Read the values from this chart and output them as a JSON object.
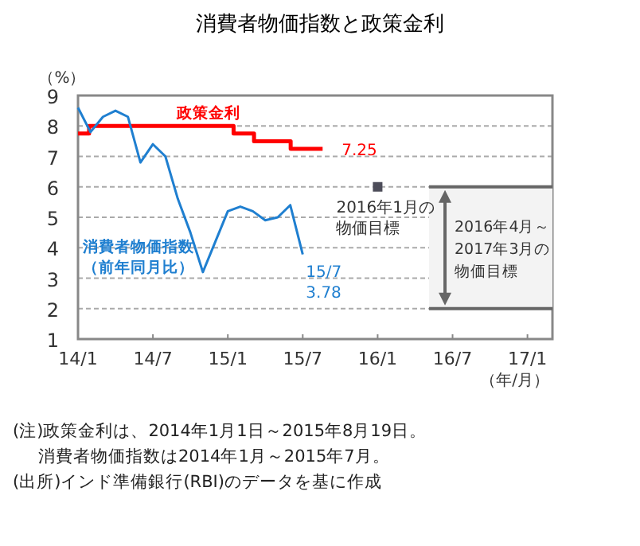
{
  "chart_data": {
    "type": "line",
    "title": "消費者物価指数と政策金利",
    "ylabel": "（%）",
    "xlabel": "（年/月）",
    "xlim": [
      "2014-01",
      "2017-03"
    ],
    "ylim": [
      1,
      9
    ],
    "xticks": [
      {
        "value": "2014-01",
        "label": "14/1"
      },
      {
        "value": "2014-07",
        "label": "14/7"
      },
      {
        "value": "2015-01",
        "label": "15/1"
      },
      {
        "value": "2015-07",
        "label": "15/7"
      },
      {
        "value": "2016-01",
        "label": "16/1"
      },
      {
        "value": "2016-07",
        "label": "16/7"
      },
      {
        "value": "2017-01",
        "label": "17/1"
      }
    ],
    "yticks": [
      1,
      2,
      3,
      4,
      5,
      6,
      7,
      8,
      9
    ],
    "grid": "y",
    "series": [
      {
        "name": "政策金利",
        "type": "step",
        "color": "#ff0000",
        "x": [
          "2014-01-01",
          "2014-01-28",
          "2015-01-15",
          "2015-03-04",
          "2015-06-02",
          "2015-08-19"
        ],
        "values": [
          7.75,
          8,
          7.75,
          7.5,
          7.25,
          7.25
        ]
      },
      {
        "name": "消費者物価指数（前年同月比）",
        "color": "#1f7fd0",
        "x": [
          "2014-01",
          "2014-02",
          "2014-03",
          "2014-04",
          "2014-05",
          "2014-06",
          "2014-07",
          "2014-08",
          "2014-09",
          "2014-10",
          "2014-11",
          "2014-12",
          "2015-01",
          "2015-02",
          "2015-03",
          "2015-04",
          "2015-05",
          "2015-06",
          "2015-07"
        ],
        "values": [
          8.6,
          7.8,
          8.3,
          8.5,
          8.3,
          6.8,
          7.4,
          7.0,
          5.6,
          4.5,
          3.2,
          4.2,
          5.2,
          5.35,
          5.2,
          4.9,
          5.0,
          5.4,
          3.78
        ]
      },
      {
        "type": "scatter",
        "marker": "square",
        "color": "#4d4d5a",
        "x": [
          "2016-01"
        ],
        "values": [
          6
        ]
      }
    ],
    "bands": [
      {
        "axis": "y",
        "from": 2,
        "to": 6,
        "label": "2016年4月～2017年3月の物価目標",
        "color": "#f3f3f3"
      }
    ],
    "annotations": [
      {
        "text": "7.25",
        "x": "2015-08-19",
        "y": 7.25
      },
      {
        "text": "15/7\n3.78",
        "x": "2015-07",
        "y": 3.78
      },
      {
        "text": "2016年1月の物価目標",
        "x": "2016-01",
        "y": 6
      },
      "(注)政策金利は、2014年1月1日～2015年8月19日。",
      "消費者物価指数は2014年1月～2015年7月。",
      "(出所)インド準備銀行(RBI)のデータを基に作成"
    ]
  }
}
